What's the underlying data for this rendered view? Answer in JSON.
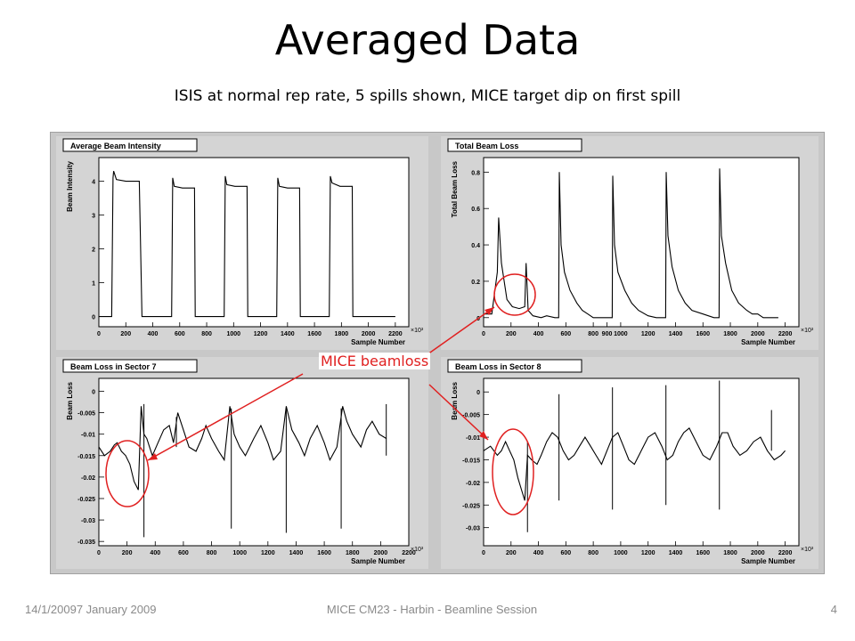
{
  "slide": {
    "title": "Averaged Data",
    "subtitle": "ISIS at normal rep rate, 5 spills shown, MICE target dip on first spill",
    "annotation": "MICE beamloss",
    "footer_left": "14/1/20097 January 2009",
    "footer_center": "MICE CM23 - Harbin - Beamline Session",
    "page_number": "4"
  },
  "colors": {
    "trace": "#000000",
    "annotation": "#e02020",
    "panel_bg": "#d4d4d4",
    "plot_bg": "#ffffff"
  },
  "chart_data": [
    {
      "type": "line",
      "title": "Average Beam Intensity",
      "xlabel": "Sample Number",
      "ylabel": "Beam Intensity",
      "x_multiplier": "×10³",
      "xlim": [
        0,
        2300
      ],
      "ylim": [
        -0.3,
        4.7
      ],
      "xticks": [
        0,
        200,
        400,
        600,
        800,
        1000,
        1200,
        1400,
        1600,
        1800,
        2000,
        2200
      ],
      "yticks": [
        0,
        1,
        2,
        3,
        4
      ],
      "ytick_labels": [
        "0",
        "1",
        "2",
        "3",
        "4"
      ],
      "series": [
        {
          "x": [
            0,
            95,
            105,
            110,
            130,
            200,
            300,
            320,
            325,
            540,
            548,
            560,
            620,
            710,
            715,
            930,
            938,
            950,
            1010,
            1100,
            1105,
            1320,
            1328,
            1340,
            1400,
            1490,
            1495,
            1710,
            1718,
            1730,
            1790,
            1880,
            1885,
            2100,
            2105,
            2200
          ],
          "y": [
            0,
            0,
            4.1,
            4.3,
            4.05,
            4.0,
            4.0,
            0,
            0,
            0,
            4.1,
            3.85,
            3.8,
            3.8,
            0,
            0,
            4.15,
            3.9,
            3.85,
            3.85,
            0,
            0,
            4.1,
            3.85,
            3.8,
            3.8,
            0,
            0,
            4.15,
            3.95,
            3.85,
            3.85,
            0,
            0,
            0,
            0
          ]
        }
      ]
    },
    {
      "type": "line",
      "title": "Total Beam Loss",
      "xlabel": "Sample Number",
      "ylabel": "Total Beam Loss",
      "x_multiplier": "×10³",
      "xlim": [
        0,
        2300
      ],
      "ylim": [
        -0.05,
        0.88
      ],
      "xticks": [
        0,
        200,
        400,
        600,
        800,
        900,
        1000,
        1200,
        1400,
        1600,
        1800,
        2000,
        2200
      ],
      "yticks": [
        0,
        0.2,
        0.4,
        0.6,
        0.8
      ],
      "ytick_labels": [
        "0",
        "0.2",
        "0.4",
        "0.6",
        "0.8"
      ],
      "series": [
        {
          "x": [
            0,
            60,
            100,
            110,
            130,
            170,
            210,
            260,
            300,
            310,
            325,
            360,
            420,
            460,
            520,
            548,
            552,
            565,
            590,
            630,
            680,
            720,
            760,
            800,
            850,
            920,
            938,
            942,
            955,
            980,
            1030,
            1080,
            1130,
            1200,
            1260,
            1328,
            1332,
            1345,
            1375,
            1420,
            1470,
            1520,
            1600,
            1680,
            1718,
            1722,
            1735,
            1765,
            1810,
            1860,
            1920,
            1960,
            2000,
            2040,
            2090,
            2150
          ],
          "y": [
            0.02,
            0.02,
            0.25,
            0.55,
            0.3,
            0.1,
            0.06,
            0.05,
            0.06,
            0.3,
            0.04,
            0.01,
            0.0,
            0.01,
            0.0,
            0.0,
            0.8,
            0.4,
            0.25,
            0.15,
            0.08,
            0.04,
            0.02,
            0.0,
            0.0,
            0.0,
            0.0,
            0.78,
            0.4,
            0.25,
            0.15,
            0.08,
            0.04,
            0.01,
            0.0,
            0.0,
            0.8,
            0.45,
            0.28,
            0.15,
            0.08,
            0.04,
            0.02,
            0.0,
            0.0,
            0.82,
            0.45,
            0.3,
            0.15,
            0.08,
            0.04,
            0.02,
            0.02,
            0.0,
            0.0,
            0.0
          ]
        }
      ]
    },
    {
      "type": "line",
      "title": "Beam Loss in Sector 7",
      "xlabel": "Sample Number",
      "ylabel": "Beam Loss",
      "x_multiplier": "×10³",
      "xlim": [
        0,
        2200
      ],
      "ylim": [
        -0.036,
        0.003
      ],
      "xticks": [
        0,
        200,
        400,
        600,
        800,
        1000,
        1200,
        1400,
        1600,
        1800,
        2000,
        2200
      ],
      "yticks": [
        0,
        -0.005,
        -0.01,
        -0.015,
        -0.02,
        -0.025,
        -0.03,
        -0.035
      ],
      "ytick_labels": [
        "0",
        "-0.005",
        "-0.01",
        "-0.015",
        "-0.02",
        "-0.025",
        "-0.03",
        "-0.035"
      ],
      "series": [
        {
          "x": [
            0,
            40,
            80,
            110,
            130,
            160,
            190,
            220,
            250,
            280,
            300,
            320,
            340,
            360,
            380,
            420,
            460,
            500,
            530,
            560,
            600,
            640,
            690,
            730,
            760,
            800,
            850,
            890,
            930,
            960,
            1000,
            1040,
            1100,
            1150,
            1200,
            1240,
            1290,
            1330,
            1370,
            1420,
            1460,
            1500,
            1550,
            1600,
            1640,
            1690,
            1730,
            1760,
            1800,
            1860,
            1900,
            1940,
            1990,
            2040
          ],
          "y": [
            -0.013,
            -0.015,
            -0.014,
            -0.0125,
            -0.012,
            -0.014,
            -0.015,
            -0.017,
            -0.021,
            -0.023,
            -0.0035,
            -0.01,
            -0.011,
            -0.013,
            -0.015,
            -0.012,
            -0.009,
            -0.008,
            -0.012,
            -0.005,
            -0.009,
            -0.013,
            -0.014,
            -0.011,
            -0.008,
            -0.011,
            -0.014,
            -0.016,
            -0.0035,
            -0.01,
            -0.013,
            -0.015,
            -0.011,
            -0.008,
            -0.012,
            -0.016,
            -0.014,
            -0.0035,
            -0.009,
            -0.012,
            -0.015,
            -0.011,
            -0.008,
            -0.012,
            -0.016,
            -0.013,
            -0.0035,
            -0.007,
            -0.01,
            -0.013,
            -0.009,
            -0.007,
            -0.01,
            -0.011
          ]
        }
      ],
      "spikes": [
        {
          "x": 320,
          "top": -0.003,
          "bottom": -0.034
        },
        {
          "x": 550,
          "top": -0.006,
          "bottom": -0.013
        },
        {
          "x": 940,
          "top": -0.004,
          "bottom": -0.032
        },
        {
          "x": 1330,
          "top": -0.004,
          "bottom": -0.033
        },
        {
          "x": 1720,
          "top": -0.004,
          "bottom": -0.032
        },
        {
          "x": 2040,
          "top": -0.003,
          "bottom": -0.015
        }
      ]
    },
    {
      "type": "line",
      "title": "Beam Loss in Sector 8",
      "xlabel": "Sample Number",
      "ylabel": "Beam Loss",
      "x_multiplier": "×10³",
      "xlim": [
        0,
        2300
      ],
      "ylim": [
        -0.034,
        0.003
      ],
      "xticks": [
        0,
        200,
        400,
        600,
        800,
        1000,
        1200,
        1400,
        1600,
        1800,
        2000,
        2200
      ],
      "yticks": [
        0,
        -0.005,
        -0.01,
        -0.015,
        -0.02,
        -0.025,
        -0.03
      ],
      "ytick_labels": [
        "0",
        "-0.005",
        "-0.01",
        "-0.015",
        "-0.02",
        "-0.025",
        "-0.03"
      ],
      "series": [
        {
          "x": [
            0,
            50,
            100,
            130,
            160,
            190,
            220,
            250,
            280,
            300,
            320,
            350,
            390,
            420,
            460,
            500,
            540,
            580,
            620,
            660,
            700,
            740,
            780,
            820,
            860,
            900,
            940,
            980,
            1020,
            1060,
            1100,
            1150,
            1200,
            1250,
            1300,
            1340,
            1380,
            1420,
            1460,
            1500,
            1550,
            1600,
            1650,
            1700,
            1740,
            1780,
            1820,
            1870,
            1920,
            1970,
            2020,
            2070,
            2120,
            2170,
            2200
          ],
          "y": [
            -0.013,
            -0.012,
            -0.014,
            -0.013,
            -0.011,
            -0.013,
            -0.015,
            -0.019,
            -0.022,
            -0.024,
            -0.014,
            -0.015,
            -0.016,
            -0.014,
            -0.011,
            -0.009,
            -0.01,
            -0.013,
            -0.015,
            -0.014,
            -0.012,
            -0.01,
            -0.012,
            -0.014,
            -0.016,
            -0.013,
            -0.01,
            -0.009,
            -0.012,
            -0.015,
            -0.016,
            -0.013,
            -0.01,
            -0.009,
            -0.012,
            -0.015,
            -0.014,
            -0.011,
            -0.009,
            -0.008,
            -0.011,
            -0.014,
            -0.015,
            -0.012,
            -0.009,
            -0.009,
            -0.012,
            -0.014,
            -0.013,
            -0.011,
            -0.01,
            -0.013,
            -0.015,
            -0.014,
            -0.013
          ]
        }
      ],
      "spikes": [
        {
          "x": 320,
          "top": -0.011,
          "bottom": -0.031
        },
        {
          "x": 550,
          "top": -0.0005,
          "bottom": -0.024
        },
        {
          "x": 940,
          "top": 0.001,
          "bottom": -0.026
        },
        {
          "x": 1330,
          "top": 0.0015,
          "bottom": -0.025
        },
        {
          "x": 1720,
          "top": 0.0025,
          "bottom": -0.026
        },
        {
          "x": 2100,
          "top": -0.004,
          "bottom": -0.013
        }
      ]
    }
  ]
}
